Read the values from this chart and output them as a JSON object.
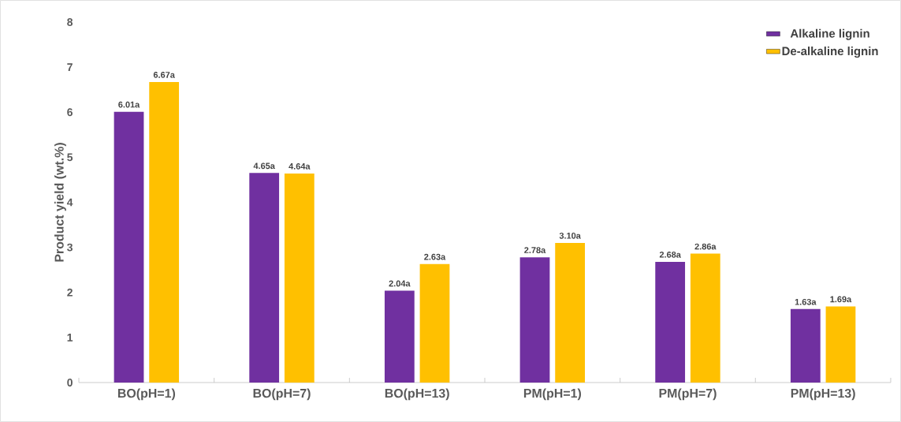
{
  "chart_data": {
    "type": "bar",
    "ylabel": "Product yield (wt.%)",
    "categories": [
      "BO(pH=1)",
      "BO(pH=7)",
      "BO(pH=13)",
      "PM(pH=1)",
      "PM(pH=7)",
      "PM(pH=13)"
    ],
    "series": [
      {
        "name": "Alkaline lignin",
        "color": "#7030a0",
        "values": [
          6.01,
          4.65,
          2.04,
          2.78,
          2.68,
          1.63
        ],
        "value_labels": [
          "6.01a",
          "4.65a",
          "2.04a",
          "2.78a",
          "2.68a",
          "1.63a"
        ]
      },
      {
        "name": "De-alkaline lignin",
        "color": "#ffc000",
        "values": [
          6.67,
          4.64,
          2.63,
          3.1,
          2.86,
          1.69
        ],
        "value_labels": [
          "6.67a",
          "4.64a",
          "2.63a",
          "3.10a",
          "2.86a",
          "1.69a"
        ]
      }
    ],
    "ylim": [
      0,
      8
    ],
    "yticks": [
      0,
      1,
      2,
      3,
      4,
      5,
      6,
      7,
      8
    ],
    "grid": false,
    "legend": "top right"
  }
}
